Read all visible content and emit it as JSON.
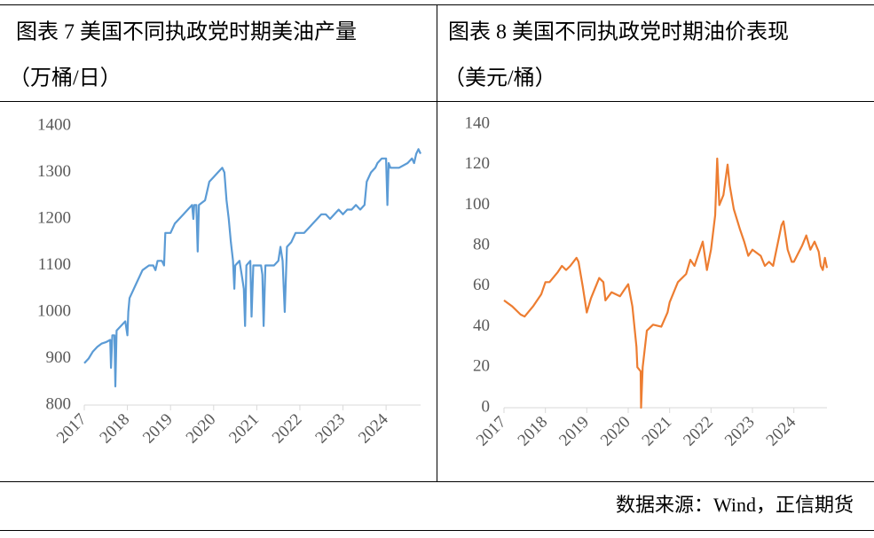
{
  "chart_data": [
    {
      "type": "line",
      "title": "图表 7 美国不同执政党时期美油产量",
      "subtitle": "（万桶/日）",
      "color": "#5b9bd5",
      "x": [
        2017.0,
        2017.1,
        2017.2,
        2017.3,
        2017.4,
        2017.5,
        2017.6,
        2017.62,
        2017.65,
        2017.7,
        2017.72,
        2017.75,
        2017.85,
        2017.95,
        2018.0,
        2018.02,
        2018.05,
        2018.2,
        2018.35,
        2018.5,
        2018.6,
        2018.65,
        2018.7,
        2018.8,
        2018.85,
        2018.88,
        2019.0,
        2019.1,
        2019.2,
        2019.3,
        2019.4,
        2019.5,
        2019.53,
        2019.55,
        2019.6,
        2019.63,
        2019.66,
        2019.8,
        2019.9,
        2020.0,
        2020.1,
        2020.2,
        2020.25,
        2020.3,
        2020.35,
        2020.4,
        2020.45,
        2020.48,
        2020.5,
        2020.6,
        2020.65,
        2020.7,
        2020.73,
        2020.76,
        2020.85,
        2020.88,
        2020.92,
        2021.0,
        2021.1,
        2021.13,
        2021.16,
        2021.2,
        2021.3,
        2021.4,
        2021.5,
        2021.55,
        2021.6,
        2021.65,
        2021.7,
        2021.8,
        2021.9,
        2022.0,
        2022.1,
        2022.2,
        2022.3,
        2022.4,
        2022.5,
        2022.6,
        2022.7,
        2022.8,
        2022.9,
        2023.0,
        2023.1,
        2023.2,
        2023.3,
        2023.4,
        2023.5,
        2023.55,
        2023.65,
        2023.75,
        2023.8,
        2023.9,
        2024.0,
        2024.03,
        2024.06,
        2024.1,
        2024.3,
        2024.5,
        2024.6,
        2024.65,
        2024.7,
        2024.75,
        2024.8
      ],
      "values": [
        890,
        900,
        915,
        925,
        932,
        935,
        940,
        880,
        950,
        950,
        840,
        960,
        970,
        980,
        950,
        1000,
        1030,
        1060,
        1090,
        1100,
        1100,
        1090,
        1110,
        1110,
        1100,
        1170,
        1170,
        1190,
        1200,
        1210,
        1220,
        1230,
        1200,
        1230,
        1230,
        1130,
        1230,
        1240,
        1280,
        1290,
        1300,
        1310,
        1300,
        1240,
        1200,
        1150,
        1110,
        1050,
        1100,
        1110,
        1080,
        1050,
        970,
        1100,
        1110,
        990,
        1100,
        1100,
        1100,
        1080,
        970,
        1100,
        1100,
        1100,
        1110,
        1140,
        1110,
        1000,
        1140,
        1150,
        1170,
        1170,
        1170,
        1180,
        1190,
        1200,
        1210,
        1210,
        1200,
        1210,
        1220,
        1210,
        1220,
        1220,
        1230,
        1220,
        1230,
        1280,
        1300,
        1310,
        1320,
        1330,
        1330,
        1230,
        1320,
        1310,
        1310,
        1320,
        1330,
        1320,
        1340,
        1350,
        1340
      ],
      "xlim": [
        2017,
        2024.8
      ],
      "xticks": [
        2017,
        2018,
        2019,
        2020,
        2021,
        2022,
        2023,
        2024
      ],
      "ylim": [
        800,
        1400
      ],
      "yticks": [
        800,
        900,
        1000,
        1100,
        1200,
        1300,
        1400
      ]
    },
    {
      "type": "line",
      "title": "图表 8 美国不同执政党时期油价表现",
      "subtitle": "（美元/桶）",
      "color": "#ed7d31",
      "x": [
        2017.0,
        2017.2,
        2017.4,
        2017.5,
        2017.7,
        2017.9,
        2018.0,
        2018.1,
        2018.3,
        2018.4,
        2018.5,
        2018.6,
        2018.75,
        2018.8,
        2018.9,
        2019.0,
        2019.1,
        2019.3,
        2019.4,
        2019.45,
        2019.6,
        2019.8,
        2019.9,
        2020.0,
        2020.1,
        2020.2,
        2020.22,
        2020.3,
        2020.31,
        2020.35,
        2020.45,
        2020.6,
        2020.8,
        2020.95,
        2021.0,
        2021.2,
        2021.4,
        2021.5,
        2021.6,
        2021.8,
        2021.9,
        2022.0,
        2022.1,
        2022.15,
        2022.2,
        2022.3,
        2022.4,
        2022.45,
        2022.55,
        2022.7,
        2022.8,
        2022.9,
        2023.0,
        2023.2,
        2023.3,
        2023.4,
        2023.5,
        2023.6,
        2023.7,
        2023.75,
        2023.85,
        2023.95,
        2024.0,
        2024.2,
        2024.3,
        2024.4,
        2024.5,
        2024.6,
        2024.65,
        2024.7,
        2024.75,
        2024.8
      ],
      "values": [
        53,
        50,
        46,
        45,
        50,
        56,
        62,
        62,
        67,
        70,
        68,
        70,
        74,
        72,
        60,
        47,
        54,
        64,
        62,
        53,
        57,
        55,
        58,
        61,
        50,
        30,
        20,
        18,
        0,
        20,
        38,
        41,
        40,
        47,
        52,
        62,
        66,
        73,
        70,
        82,
        68,
        78,
        95,
        123,
        100,
        105,
        120,
        110,
        98,
        88,
        82,
        75,
        78,
        75,
        70,
        72,
        70,
        80,
        90,
        92,
        78,
        72,
        72,
        80,
        85,
        78,
        82,
        77,
        70,
        68,
        74,
        69
      ],
      "xlim": [
        2017,
        2024.8
      ],
      "xticks": [
        2017,
        2018,
        2019,
        2020,
        2021,
        2022,
        2023,
        2024
      ],
      "ylim": [
        0,
        140
      ],
      "yticks": [
        0,
        20,
        40,
        60,
        80,
        100,
        120,
        140
      ]
    }
  ],
  "source": "数据来源：Wind，正信期货"
}
